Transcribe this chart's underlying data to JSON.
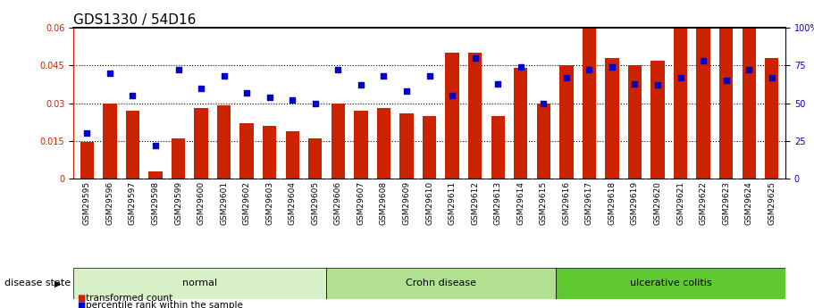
{
  "title": "GDS1330 / 54D16",
  "samples": [
    "GSM29595",
    "GSM29596",
    "GSM29597",
    "GSM29598",
    "GSM29599",
    "GSM29600",
    "GSM29601",
    "GSM29602",
    "GSM29603",
    "GSM29604",
    "GSM29605",
    "GSM29606",
    "GSM29607",
    "GSM29608",
    "GSM29609",
    "GSM29610",
    "GSM29611",
    "GSM29612",
    "GSM29613",
    "GSM29614",
    "GSM29615",
    "GSM29616",
    "GSM29617",
    "GSM29618",
    "GSM29619",
    "GSM29620",
    "GSM29621",
    "GSM29622",
    "GSM29623",
    "GSM29624",
    "GSM29625"
  ],
  "bar_values": [
    0.0145,
    0.03,
    0.027,
    0.003,
    0.016,
    0.028,
    0.029,
    0.022,
    0.021,
    0.019,
    0.016,
    0.03,
    0.027,
    0.028,
    0.026,
    0.025,
    0.05,
    0.05,
    0.025,
    0.044,
    0.03,
    0.045,
    0.06,
    0.048,
    0.045,
    0.047,
    0.065,
    0.07,
    0.063,
    0.063,
    0.048
  ],
  "dot_values": [
    30,
    70,
    55,
    22,
    72,
    60,
    68,
    57,
    54,
    52,
    50,
    72,
    62,
    68,
    58,
    68,
    55,
    80,
    63,
    74,
    50,
    67,
    72,
    74,
    63,
    62,
    67,
    78,
    65,
    72,
    67
  ],
  "groups": [
    {
      "label": "normal",
      "start": 0,
      "end": 11,
      "color": "#d8f0c8"
    },
    {
      "label": "Crohn disease",
      "start": 11,
      "end": 21,
      "color": "#b0e090"
    },
    {
      "label": "ulcerative colitis",
      "start": 21,
      "end": 31,
      "color": "#60c830"
    }
  ],
  "bar_color": "#cc2200",
  "dot_color": "#0000cc",
  "ylim_left": [
    0,
    0.06
  ],
  "ylim_right": [
    0,
    100
  ],
  "yticks_left": [
    0,
    0.015,
    0.03,
    0.045,
    0.06
  ],
  "yticks_right": [
    0,
    25,
    50,
    75,
    100
  ],
  "grid_values": [
    0.015,
    0.03,
    0.045
  ],
  "background_color": "#ffffff",
  "title_fontsize": 11,
  "tick_fontsize": 7,
  "disease_state_label": "disease state",
  "legend_items": [
    "transformed count",
    "percentile rank within the sample"
  ],
  "sep_color": "#b0b0b0"
}
